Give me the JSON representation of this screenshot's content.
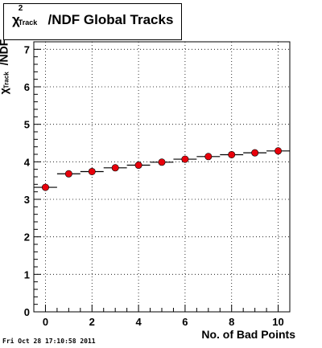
{
  "chart_data": {
    "type": "scatter",
    "title_parts": {
      "chi": "χ",
      "sup": "2",
      "sub": "Track",
      "rest": "/NDF  Global Tracks"
    },
    "ylabel_parts": {
      "chi": "χ",
      "sup": "2",
      "sub": "Track",
      "rest": "/NDF"
    },
    "xlabel": "No. of Bad Points",
    "xlim": [
      -0.5,
      10.5
    ],
    "ylim": [
      0,
      7.2
    ],
    "xticks": [
      0,
      2,
      4,
      6,
      8,
      10
    ],
    "yticks": [
      0,
      1,
      2,
      3,
      4,
      5,
      6,
      7
    ],
    "grid": true,
    "series": [
      {
        "marker_color": "#e8000b",
        "x": [
          0,
          1,
          2,
          3,
          4,
          5,
          6,
          7,
          8,
          9,
          10
        ],
        "y": [
          3.32,
          3.68,
          3.74,
          3.84,
          3.91,
          3.99,
          4.07,
          4.14,
          4.19,
          4.24,
          4.29
        ]
      }
    ]
  },
  "footer_text": "Fri Oct 28 17:10:58 2011"
}
